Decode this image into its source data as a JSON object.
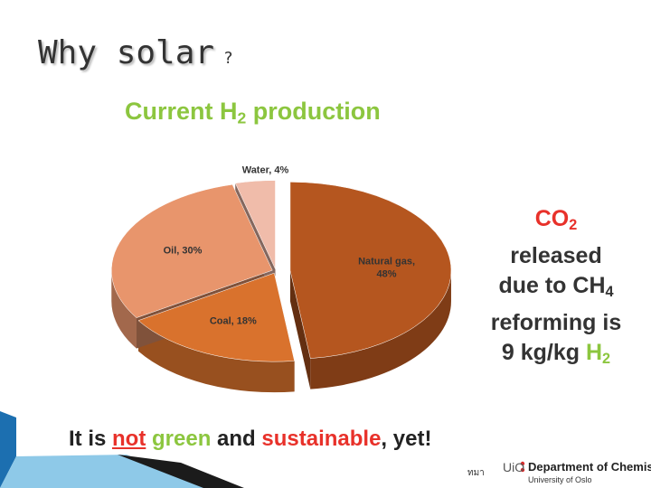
{
  "slide_title": "Why solar",
  "slide_title_suffix": "?",
  "chart_data": {
    "type": "pie",
    "title": [
      {
        "text": "Current H"
      },
      {
        "text": "2",
        "sub": true
      },
      {
        "text": " production"
      }
    ],
    "title_color": "#8cc63f",
    "values": [
      48,
      18,
      30,
      4
    ],
    "value_labels": [
      "Natural gas, 48%",
      "Coal, 18%",
      "Oil, 30%",
      "Water, 4%"
    ],
    "colors": [
      "#b5561f",
      "#d9722d",
      "#e8956c",
      "#f0bcaa"
    ]
  },
  "callout": [
    [
      {
        "text": "CO",
        "color": "#e8312a"
      },
      {
        "text": "2",
        "sub": true,
        "color": "#e8312a"
      }
    ],
    [
      {
        "text": "released"
      }
    ],
    [
      {
        "text": "due to CH"
      },
      {
        "text": "4",
        "sub": true
      }
    ],
    [
      {
        "text": "reforming is"
      }
    ],
    [
      {
        "text": "9 kg/kg "
      },
      {
        "text": "H",
        "color": "#8cc63f"
      },
      {
        "text": "2",
        "sub": true,
        "color": "#8cc63f"
      }
    ]
  ],
  "footer": [
    {
      "text": "It is "
    },
    {
      "text": "not",
      "color": "#e8312a",
      "underline": true
    },
    {
      "text": " "
    },
    {
      "text": "green",
      "color": "#8cc63f"
    },
    {
      "text": " and "
    },
    {
      "text": "sustainable",
      "color": "#e8312a"
    },
    {
      "text": ", yet!"
    }
  ],
  "page_note": "ทมา",
  "logo": {
    "mark": "UiO",
    "department": "Department of Chemistry",
    "university": "University of Oslo"
  }
}
